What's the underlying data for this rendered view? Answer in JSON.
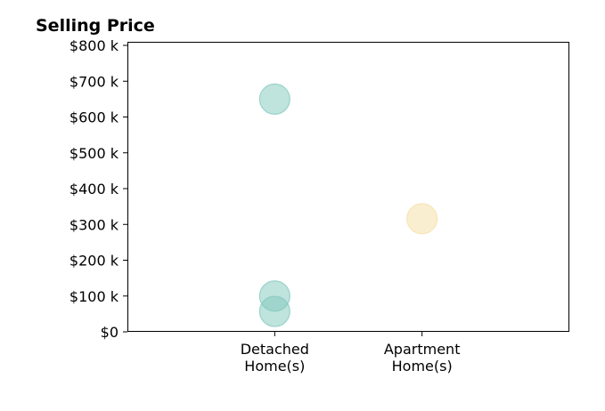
{
  "chart_data": {
    "type": "scatter",
    "title": "Selling Price",
    "xlabel": "",
    "ylabel": "",
    "categories": [
      [
        "Detached",
        "Home(s)"
      ],
      [
        "Apartment",
        "Home(s)"
      ]
    ],
    "yticks": [
      {
        "value": 0,
        "label": "$0"
      },
      {
        "value": 100000,
        "label": "$100 k"
      },
      {
        "value": 200000,
        "label": "$200 k"
      },
      {
        "value": 300000,
        "label": "$300 k"
      },
      {
        "value": 400000,
        "label": "$400 k"
      },
      {
        "value": 500000,
        "label": "$500 k"
      },
      {
        "value": 600000,
        "label": "$600 k"
      },
      {
        "value": 700000,
        "label": "$700 k"
      },
      {
        "value": 800000,
        "label": "$800 k"
      }
    ],
    "ylim": [
      0,
      810000
    ],
    "xlim": [
      -1,
      2
    ],
    "grid": false,
    "points": [
      {
        "category": 0,
        "y": 650000,
        "color": "#7fc8bc"
      },
      {
        "category": 0,
        "y": 100000,
        "color": "#7fc8bc"
      },
      {
        "category": 0,
        "y": 57000,
        "color": "#7fc8bc"
      },
      {
        "category": 1,
        "y": 316000,
        "color": "#f5dea4"
      }
    ]
  }
}
